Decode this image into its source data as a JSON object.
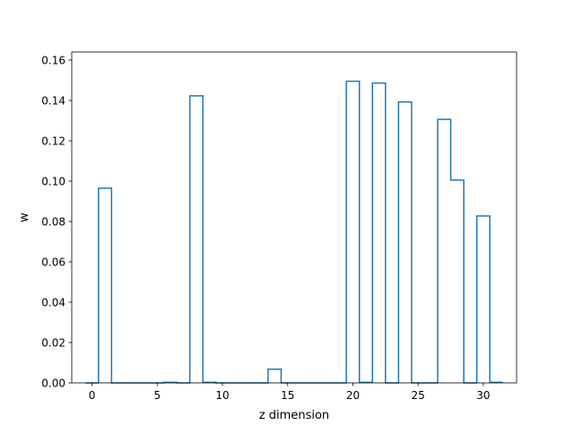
{
  "chart_data": {
    "type": "step",
    "title": "",
    "xlabel": "z dimension",
    "ylabel": "w",
    "xlim": [
      -1.55,
      32.55
    ],
    "ylim": [
      0.0,
      0.164
    ],
    "x_ticks": [
      0,
      5,
      10,
      15,
      20,
      25,
      30
    ],
    "y_ticks": [
      0.0,
      0.02,
      0.04,
      0.06,
      0.08,
      0.1,
      0.12,
      0.14,
      0.16
    ],
    "x_tick_labels": [
      "0",
      "5",
      "10",
      "15",
      "20",
      "25",
      "30"
    ],
    "y_tick_labels": [
      "0.00",
      "0.02",
      "0.04",
      "0.06",
      "0.08",
      "0.10",
      "0.12",
      "0.14",
      "0.16"
    ],
    "grid": false,
    "legend": false,
    "series": [
      {
        "color": "#1f77b4",
        "x": [
          0,
          1,
          2,
          3,
          4,
          5,
          6,
          7,
          8,
          9,
          10,
          11,
          12,
          13,
          14,
          15,
          16,
          17,
          18,
          19,
          20,
          21,
          22,
          23,
          24,
          25,
          26,
          27,
          28,
          29,
          30,
          31
        ],
        "values": [
          0.0,
          0.0965,
          0.0,
          0.0,
          0.0,
          0.0,
          0.0003,
          0.0,
          0.1423,
          0.0003,
          0.0,
          0.0,
          0.0,
          0.0,
          0.0068,
          0.0,
          0.0,
          0.0,
          0.0,
          0.0,
          0.1495,
          0.0003,
          0.1486,
          0.0,
          0.1392,
          0.0,
          0.0,
          0.1306,
          0.1005,
          0.0,
          0.0827,
          0.0003
        ]
      }
    ]
  }
}
